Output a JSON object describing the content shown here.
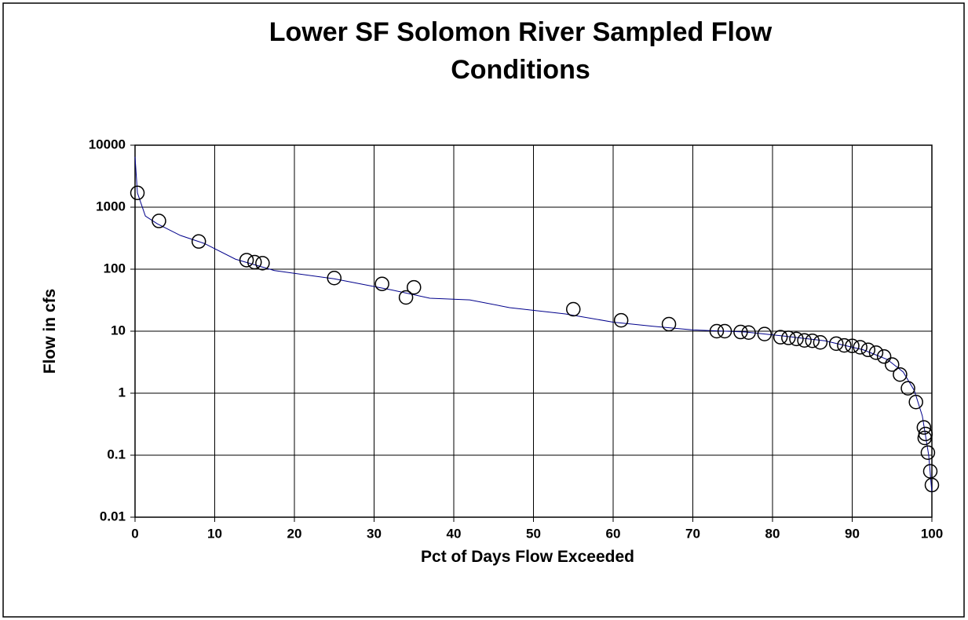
{
  "chart_data": {
    "type": "line",
    "title": [
      "Lower SF Solomon River Sampled Flow",
      "Conditions"
    ],
    "xlabel": "Pct of Days Flow Exceeded",
    "ylabel": "Flow in cfs",
    "xlim": [
      0,
      100
    ],
    "xticks": [
      0,
      10,
      20,
      30,
      40,
      50,
      60,
      70,
      80,
      90,
      100
    ],
    "ylim": [
      0.01,
      10000
    ],
    "yticks": [
      0.01,
      0.1,
      1,
      10,
      100,
      1000,
      10000
    ],
    "ylog": true,
    "grid": true,
    "series": [
      {
        "mode": "line",
        "color": "#00008b",
        "x": [
          0,
          0.3,
          1.3,
          2.8,
          5.7,
          8.7,
          12.6,
          17.5,
          25,
          32.3,
          37,
          42,
          47,
          54,
          60,
          65,
          70,
          76.6,
          81.6,
          86.6,
          91.4,
          94.4,
          96.4,
          97.8,
          98.8,
          99.6,
          100
        ],
        "values": [
          6500,
          1700,
          720,
          540,
          350,
          260,
          145,
          95,
          70,
          46,
          34,
          32,
          24,
          19,
          14,
          12,
          10.5,
          9.7,
          8.3,
          7.0,
          5.0,
          3.5,
          2.2,
          1.1,
          0.43,
          0.1,
          0.025
        ]
      },
      {
        "mode": "marker",
        "color": "#000000",
        "x": [
          0.3,
          3,
          8,
          14,
          15,
          16,
          25,
          31,
          34,
          35,
          55,
          61,
          67,
          73,
          74,
          76,
          77,
          79,
          81,
          82,
          83,
          84,
          85,
          86,
          88,
          89,
          90,
          91,
          92,
          93,
          94,
          95,
          96,
          97,
          98,
          99,
          99.2,
          99.1,
          99.5,
          99.8,
          100
        ],
        "values": [
          1700,
          600,
          280,
          140,
          130,
          125,
          72,
          58,
          35,
          51,
          22.6,
          15,
          13,
          10,
          10,
          9.7,
          9.5,
          9.0,
          8.0,
          7.8,
          7.5,
          7.1,
          7.0,
          6.6,
          6.3,
          5.9,
          5.8,
          5.5,
          5.0,
          4.5,
          3.9,
          2.9,
          2.0,
          1.2,
          0.72,
          0.28,
          0.22,
          0.19,
          0.11,
          0.055,
          0.033
        ]
      }
    ]
  }
}
